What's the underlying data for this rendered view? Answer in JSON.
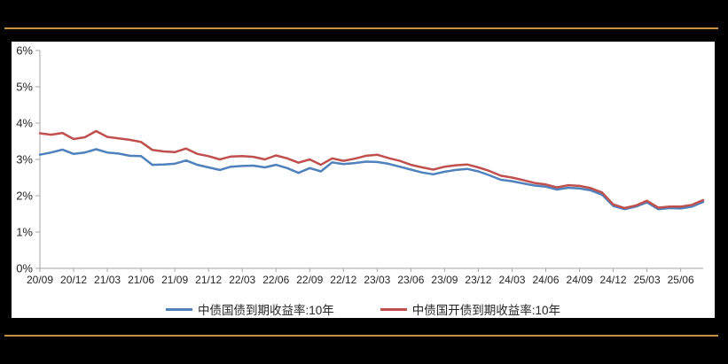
{
  "page": {
    "background_color": "#000000",
    "accent_line_color": "#C3913F",
    "panel_color": "#FFFFFF"
  },
  "chart_data": {
    "type": "line",
    "title": "",
    "grid": false,
    "legend_position": "bottom",
    "axis_color": "#A6A6A6",
    "text_color": "#262626",
    "y_axis": {
      "min": 0,
      "max": 6,
      "unit": "%",
      "ticks": [
        "6%",
        "5%",
        "4%",
        "3%",
        "2%",
        "1%",
        "0%"
      ]
    },
    "x_axis": {
      "tick_every_n_points": 3,
      "tick_labels": [
        "20/09",
        "20/12",
        "21/03",
        "21/06",
        "21/09",
        "21/12",
        "22/03",
        "22/06",
        "22/09",
        "22/12",
        "23/03",
        "23/06",
        "23/09",
        "23/12",
        "24/03",
        "24/06",
        "24/09",
        "24/12",
        "25/03",
        "25/06"
      ]
    },
    "months": [
      "20/09",
      "20/10",
      "20/11",
      "20/12",
      "21/01",
      "21/02",
      "21/03",
      "21/04",
      "21/05",
      "21/06",
      "21/07",
      "21/08",
      "21/09",
      "21/10",
      "21/11",
      "21/12",
      "22/01",
      "22/02",
      "22/03",
      "22/04",
      "22/05",
      "22/06",
      "22/07",
      "22/08",
      "22/09",
      "22/10",
      "22/11",
      "22/12",
      "23/01",
      "23/02",
      "23/03",
      "23/04",
      "23/05",
      "23/06",
      "23/07",
      "23/08",
      "23/09",
      "23/10",
      "23/11",
      "23/12",
      "24/01",
      "24/02",
      "24/03",
      "24/04",
      "24/05",
      "24/06",
      "24/07",
      "24/08",
      "24/09",
      "24/10",
      "24/11",
      "24/12",
      "25/01",
      "25/02",
      "25/03",
      "25/04",
      "25/05",
      "25/06",
      "25/07",
      "25/08"
    ],
    "series": [
      {
        "name": "中债国债到期收益率:10年",
        "color": "#4F81BD",
        "values": [
          3.13,
          3.19,
          3.27,
          3.15,
          3.19,
          3.28,
          3.19,
          3.16,
          3.1,
          3.09,
          2.85,
          2.86,
          2.88,
          2.97,
          2.85,
          2.78,
          2.71,
          2.8,
          2.82,
          2.83,
          2.78,
          2.85,
          2.76,
          2.63,
          2.76,
          2.67,
          2.92,
          2.87,
          2.9,
          2.94,
          2.93,
          2.88,
          2.8,
          2.72,
          2.64,
          2.59,
          2.66,
          2.71,
          2.74,
          2.67,
          2.56,
          2.44,
          2.4,
          2.34,
          2.28,
          2.25,
          2.17,
          2.22,
          2.2,
          2.15,
          2.03,
          1.72,
          1.63,
          1.7,
          1.82,
          1.63,
          1.66,
          1.65,
          1.7,
          1.83
        ]
      },
      {
        "name": "中债国开债到期收益率:10年",
        "color": "#C0504D",
        "values": [
          3.72,
          3.68,
          3.73,
          3.56,
          3.61,
          3.78,
          3.62,
          3.58,
          3.54,
          3.48,
          3.26,
          3.22,
          3.2,
          3.3,
          3.15,
          3.09,
          3.0,
          3.08,
          3.09,
          3.07,
          3.0,
          3.11,
          3.03,
          2.91,
          3.0,
          2.85,
          3.03,
          2.96,
          3.02,
          3.1,
          3.13,
          3.04,
          2.96,
          2.85,
          2.78,
          2.72,
          2.8,
          2.84,
          2.86,
          2.78,
          2.68,
          2.55,
          2.5,
          2.43,
          2.35,
          2.31,
          2.23,
          2.29,
          2.27,
          2.21,
          2.09,
          1.76,
          1.66,
          1.73,
          1.86,
          1.67,
          1.7,
          1.7,
          1.75,
          1.88
        ]
      }
    ]
  }
}
